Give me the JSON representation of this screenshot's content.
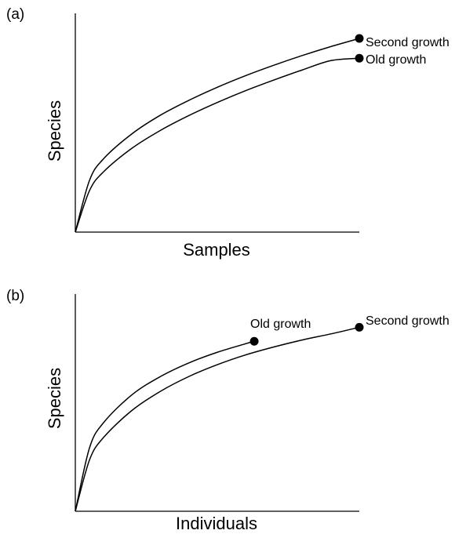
{
  "colors": {
    "ink": "#000000",
    "background": "#ffffff"
  },
  "chart_data": [
    {
      "type": "line",
      "panel_label": "(a)",
      "xlabel": "Samples",
      "ylabel": "Species",
      "xlim": [
        0,
        1
      ],
      "ylim": [
        0,
        1
      ],
      "grid": false,
      "legend": "none",
      "series": [
        {
          "name": "Second growth",
          "x": [
            0,
            0.05,
            0.1,
            0.2,
            0.3,
            0.4,
            0.5,
            0.6,
            0.7,
            0.8,
            0.9,
            1.0
          ],
          "values": [
            0,
            0.262,
            0.372,
            0.498,
            0.592,
            0.667,
            0.733,
            0.792,
            0.845,
            0.894,
            0.939,
            0.98
          ]
        },
        {
          "name": "Old growth",
          "x": [
            0,
            0.05,
            0.1,
            0.2,
            0.3,
            0.4,
            0.5,
            0.6,
            0.7,
            0.8,
            0.9,
            1.0
          ],
          "values": [
            0,
            0.21,
            0.306,
            0.425,
            0.515,
            0.59,
            0.656,
            0.716,
            0.77,
            0.821,
            0.868,
            0.88
          ]
        }
      ]
    },
    {
      "type": "line",
      "panel_label": "(b)",
      "xlabel": "Individuals",
      "ylabel": "Species",
      "xlim": [
        0,
        1
      ],
      "ylim": [
        0,
        1
      ],
      "grid": false,
      "legend": "none",
      "series": [
        {
          "name": "Old growth",
          "x": [
            0,
            0.05,
            0.1,
            0.2,
            0.3,
            0.4,
            0.5,
            0.6,
            0.63
          ],
          "values": [
            0,
            0.317,
            0.444,
            0.583,
            0.674,
            0.742,
            0.795,
            0.838,
            0.85
          ]
        },
        {
          "name": "Second growth",
          "x": [
            0,
            0.05,
            0.1,
            0.2,
            0.3,
            0.4,
            0.5,
            0.6,
            0.7,
            0.8,
            0.9,
            1.0
          ],
          "values": [
            0,
            0.257,
            0.37,
            0.505,
            0.6,
            0.674,
            0.733,
            0.782,
            0.822,
            0.857,
            0.887,
            0.92
          ]
        }
      ]
    }
  ]
}
